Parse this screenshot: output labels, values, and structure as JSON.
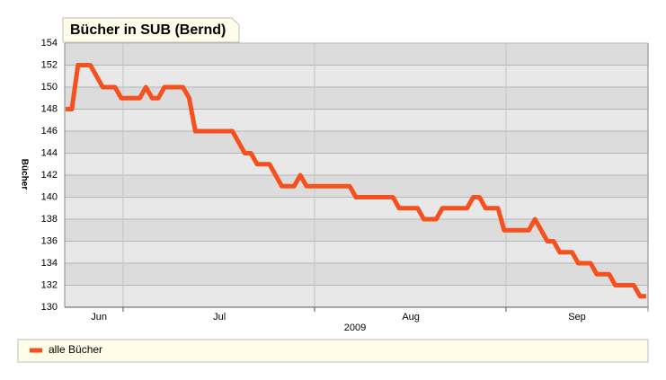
{
  "chart_data": {
    "type": "line",
    "title": "Bücher in SUB (Bernd)",
    "y_label": "Bücher",
    "x_label": "2009",
    "x": [
      0,
      1,
      2,
      4,
      6,
      8,
      9,
      12,
      13,
      14,
      15,
      16,
      19,
      20,
      21,
      27,
      29,
      30,
      31,
      33,
      35,
      37,
      38,
      39,
      46,
      47,
      53,
      54,
      57,
      58,
      60,
      61,
      65,
      66,
      67,
      68,
      70,
      71,
      75,
      76,
      78,
      79,
      80,
      82,
      83,
      85,
      86,
      88,
      89,
      92,
      93,
      94
    ],
    "series": [
      {
        "name": "alle Bücher",
        "color": "#f4511e",
        "values": [
          148,
          148,
          152,
          152,
          150,
          150,
          149,
          149,
          150,
          149,
          149,
          150,
          150,
          149,
          146,
          146,
          144,
          144,
          143,
          143,
          141,
          141,
          142,
          141,
          141,
          140,
          140,
          139,
          139,
          138,
          138,
          139,
          139,
          140,
          140,
          139,
          139,
          137,
          137,
          138,
          136,
          136,
          135,
          135,
          134,
          134,
          133,
          133,
          132,
          132,
          131,
          131
        ]
      }
    ],
    "xlim": [
      -0.15,
      94.3
    ],
    "ylim": [
      130,
      154
    ],
    "yticks": [
      130,
      132,
      134,
      136,
      138,
      140,
      142,
      144,
      146,
      148,
      150,
      152,
      154
    ],
    "xticks": [
      {
        "value": 5.4,
        "label": "Jun"
      },
      {
        "value": 24.9,
        "label": "Jul"
      },
      {
        "value": 55.9,
        "label": "Aug"
      },
      {
        "value": 82.8,
        "label": "Sep"
      }
    ],
    "x_boundaries": [
      9.3,
      40.3,
      71.3
    ],
    "grid": true
  }
}
